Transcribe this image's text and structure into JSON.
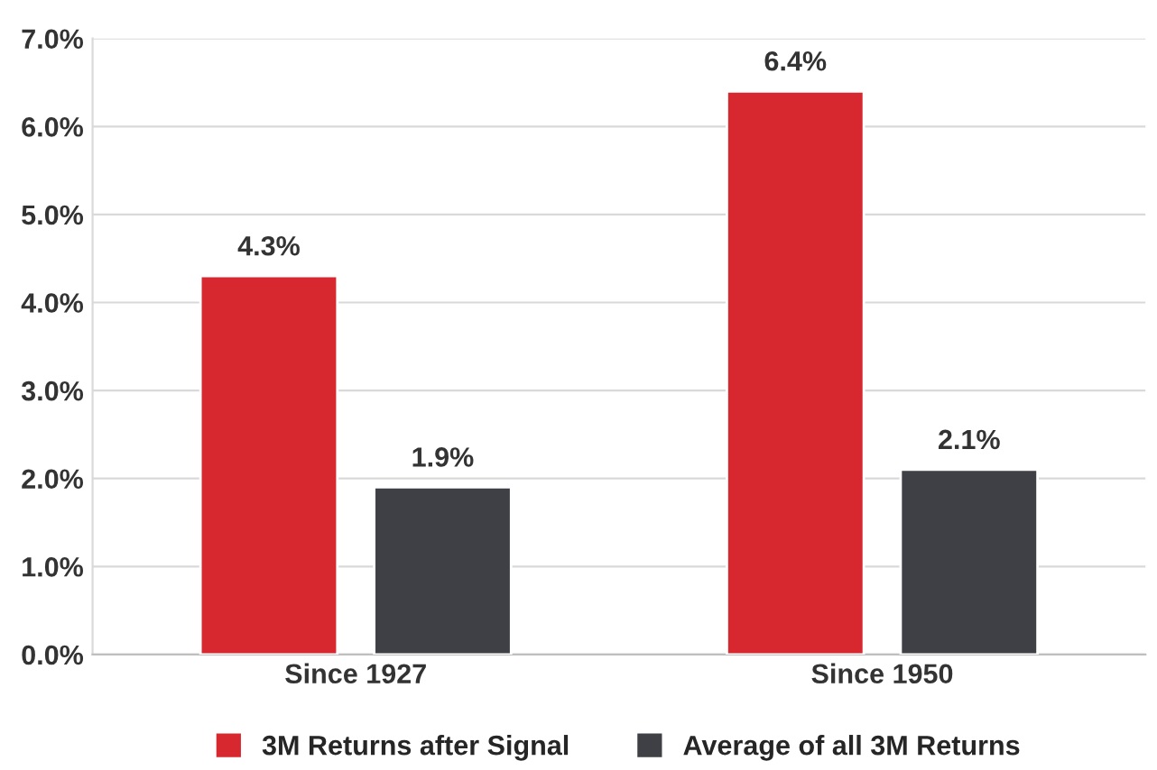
{
  "chart_data": {
    "type": "bar",
    "categories": [
      "Since 1927",
      "Since 1950"
    ],
    "series": [
      {
        "name": "3M Returns after Signal",
        "color": "#d7282f",
        "values": [
          4.3,
          6.4
        ],
        "value_labels": [
          "4.3%",
          "6.4%"
        ]
      },
      {
        "name": "Average of all 3M Returns",
        "color": "#3f4045",
        "values": [
          1.9,
          2.1
        ],
        "value_labels": [
          "1.9%",
          "2.1%"
        ]
      }
    ],
    "ylim": [
      0,
      7
    ],
    "yticks": [
      {
        "value": 0,
        "label": "0.0%"
      },
      {
        "value": 1,
        "label": "1.0%"
      },
      {
        "value": 2,
        "label": "2.0%"
      },
      {
        "value": 3,
        "label": "3.0%"
      },
      {
        "value": 4,
        "label": "4.0%"
      },
      {
        "value": 5,
        "label": "5.0%"
      },
      {
        "value": 6,
        "label": "6.0%"
      },
      {
        "value": 7,
        "label": "7.0%"
      }
    ],
    "grid": "y",
    "legend": "bottom"
  }
}
